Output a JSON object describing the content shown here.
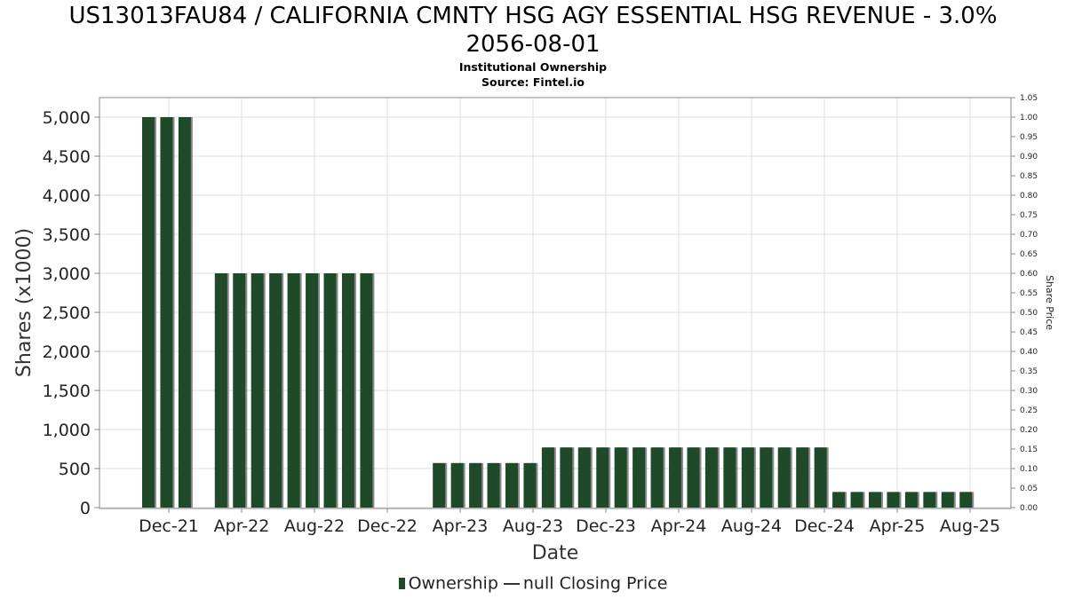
{
  "header": {
    "title_line1": "US13013FAU84 / CALIFORNIA CMNTY HSG AGY ESSENTIAL HSG REVENUE - 3.0%",
    "title_line2": "2056-08-01",
    "subtitle": "Institutional Ownership",
    "source": "Source: Fintel.io"
  },
  "legend": {
    "ownership": "Ownership",
    "closing_price": "null Closing Price"
  },
  "colors": {
    "bar": "#1e4a2a",
    "bar_shadow": "#8a8a8a",
    "grid": "#dddddd"
  },
  "chart_data": {
    "type": "bar",
    "xlabel": "Date",
    "ylabel": "Shares (x1000)",
    "y2label": "Share Price",
    "ylim": [
      0,
      5250
    ],
    "y_ticks": [
      0,
      500,
      1000,
      1500,
      2000,
      2500,
      3000,
      3500,
      4000,
      4500,
      5000
    ],
    "y_tick_labels": [
      "0",
      "500",
      "1,000",
      "1,500",
      "2,000",
      "2,500",
      "3,000",
      "3,500",
      "4,000",
      "4,500",
      "5,000"
    ],
    "y2lim": [
      0,
      1.05
    ],
    "y2_tick_labels": [
      "0.00",
      "0.05",
      "0.10",
      "0.15",
      "0.20",
      "0.25",
      "0.30",
      "0.35",
      "0.40",
      "0.45",
      "0.50",
      "0.55",
      "0.60",
      "0.65",
      "0.70",
      "0.75",
      "0.80",
      "0.85",
      "0.90",
      "0.95",
      "1.00",
      "1.05"
    ],
    "x_tick_labels": [
      "Dec-21",
      "Apr-22",
      "Aug-22",
      "Dec-22",
      "Apr-23",
      "Aug-23",
      "Dec-23",
      "Apr-24",
      "Aug-24",
      "Dec-24",
      "Apr-25",
      "Aug-25"
    ],
    "grid": true,
    "series": [
      {
        "name": "Ownership",
        "values": [
          5000,
          5000,
          5000,
          0,
          3000,
          3000,
          3000,
          3000,
          3000,
          3000,
          3000,
          3000,
          3000,
          0,
          0,
          0,
          570,
          570,
          570,
          570,
          570,
          570,
          770,
          770,
          770,
          770,
          770,
          770,
          770,
          770,
          770,
          770,
          770,
          770,
          770,
          770,
          770,
          770,
          200,
          200,
          200,
          200,
          200,
          200,
          200,
          200
        ]
      }
    ]
  }
}
